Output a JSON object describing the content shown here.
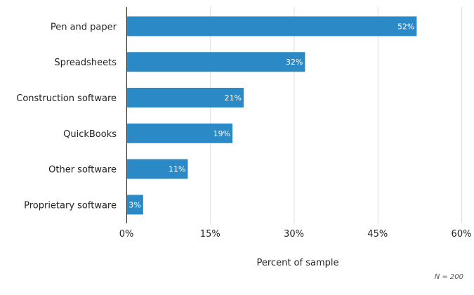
{
  "chart_data": {
    "type": "bar",
    "orientation": "horizontal",
    "categories": [
      "Pen and paper",
      "Spreadsheets",
      "Construction software",
      "QuickBooks",
      "Other software",
      "Proprietary software"
    ],
    "values": [
      52,
      32,
      21,
      19,
      11,
      3
    ],
    "value_labels": [
      "52%",
      "32%",
      "21%",
      "19%",
      "11%",
      "3%"
    ],
    "xlabel": "Percent of sample",
    "ylabel": "",
    "xlim": [
      0,
      60
    ],
    "xticks": [
      0,
      15,
      30,
      45,
      60
    ],
    "xtick_labels": [
      "0%",
      "15%",
      "30%",
      "45%",
      "60%"
    ],
    "grid": true,
    "note": "N = 200",
    "bar_color": "#2b8ac6",
    "grid_color": "#dddddd"
  }
}
